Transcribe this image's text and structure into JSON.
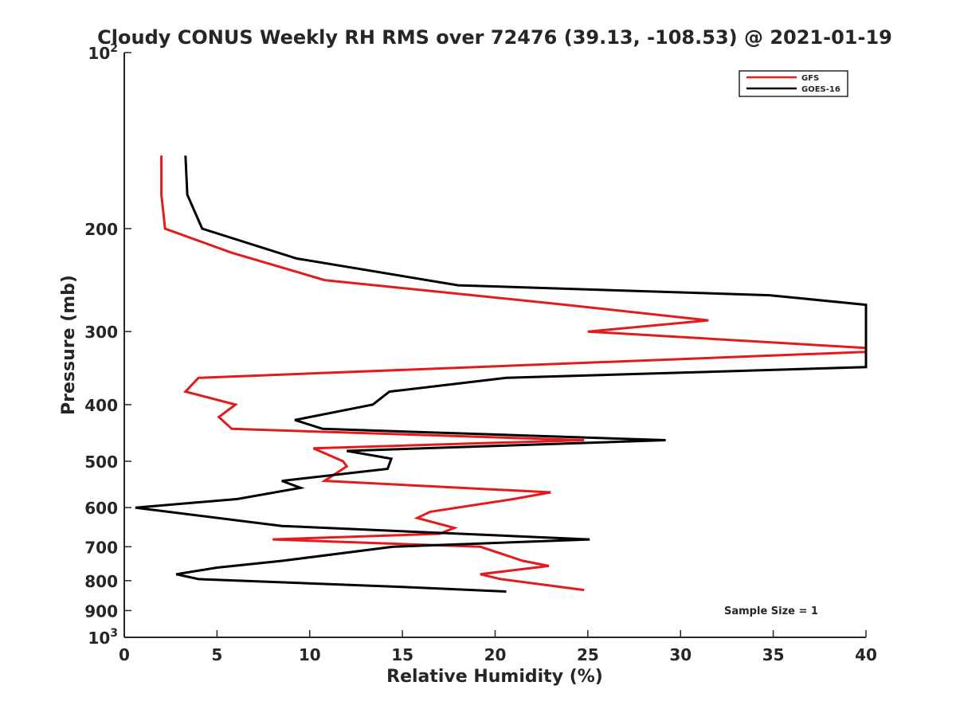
{
  "chart_data": {
    "type": "line",
    "title": "Cloudy CONUS Weekly RH RMS over 72476 (39.13, -108.53) @ 2021-01-19",
    "xlabel": "Relative Humidity (%)",
    "ylabel": "Pressure (mb)",
    "xlim": [
      0,
      40
    ],
    "ylim": [
      100,
      1000
    ],
    "y_scale": "log",
    "y_reversed": true,
    "grid": false,
    "legend_position": "top-right",
    "annotation": "Sample Size = 1",
    "x_ticks": [
      "0",
      "5",
      "10",
      "15",
      "20",
      "25",
      "30",
      "35",
      "40"
    ],
    "y_ticks": [
      {
        "value": 100,
        "label": "10",
        "sup": "2"
      },
      {
        "value": 200,
        "label": "200",
        "sup": ""
      },
      {
        "value": 300,
        "label": "300",
        "sup": ""
      },
      {
        "value": 400,
        "label": "400",
        "sup": ""
      },
      {
        "value": 500,
        "label": "500",
        "sup": ""
      },
      {
        "value": 600,
        "label": "600",
        "sup": ""
      },
      {
        "value": 700,
        "label": "700",
        "sup": ""
      },
      {
        "value": 800,
        "label": "800",
        "sup": ""
      },
      {
        "value": 900,
        "label": "900",
        "sup": ""
      },
      {
        "value": 1000,
        "label": "10",
        "sup": "3"
      }
    ],
    "series": [
      {
        "name": "GFS",
        "color": "#e41a1c",
        "points": [
          [
            2.0,
            150
          ],
          [
            2.0,
            175
          ],
          [
            2.2,
            200
          ],
          [
            5.8,
            220
          ],
          [
            10.8,
            245
          ],
          [
            23.8,
            270
          ],
          [
            31.5,
            287
          ],
          [
            25.0,
            300
          ],
          [
            40,
            320
          ],
          [
            40,
            325
          ],
          [
            4.0,
            360
          ],
          [
            3.3,
            380
          ],
          [
            6.0,
            400
          ],
          [
            5.1,
            420
          ],
          [
            5.8,
            440
          ],
          [
            24.8,
            460
          ],
          [
            10.2,
            475
          ],
          [
            11.8,
            500
          ],
          [
            12.0,
            510
          ],
          [
            10.8,
            540
          ],
          [
            23.0,
            565
          ],
          [
            21.0,
            580
          ],
          [
            16.5,
            610
          ],
          [
            15.8,
            625
          ],
          [
            17.8,
            650
          ],
          [
            17.0,
            665
          ],
          [
            8.0,
            680
          ],
          [
            19.2,
            700
          ],
          [
            21.5,
            740
          ],
          [
            22.9,
            755
          ],
          [
            19.2,
            780
          ],
          [
            20.3,
            795
          ],
          [
            24.8,
            830
          ]
        ]
      },
      {
        "name": "GOES-16",
        "color": "#000000",
        "points": [
          [
            3.3,
            150
          ],
          [
            3.4,
            175
          ],
          [
            4.2,
            200
          ],
          [
            9.3,
            225
          ],
          [
            18.0,
            250
          ],
          [
            34.8,
            260
          ],
          [
            40,
            270
          ],
          [
            40,
            345
          ],
          [
            20.6,
            360
          ],
          [
            14.3,
            380
          ],
          [
            13.4,
            400
          ],
          [
            9.2,
            425
          ],
          [
            10.7,
            440
          ],
          [
            29.2,
            460
          ],
          [
            12.0,
            480
          ],
          [
            14.4,
            495
          ],
          [
            14.2,
            515
          ],
          [
            8.5,
            540
          ],
          [
            9.5,
            555
          ],
          [
            6.1,
            580
          ],
          [
            0.6,
            600
          ],
          [
            8.5,
            645
          ],
          [
            25.1,
            680
          ],
          [
            14.5,
            700
          ],
          [
            8.5,
            740
          ],
          [
            5.0,
            760
          ],
          [
            2.8,
            780
          ],
          [
            4.0,
            795
          ],
          [
            15.0,
            820
          ],
          [
            20.6,
            835
          ]
        ]
      }
    ]
  }
}
